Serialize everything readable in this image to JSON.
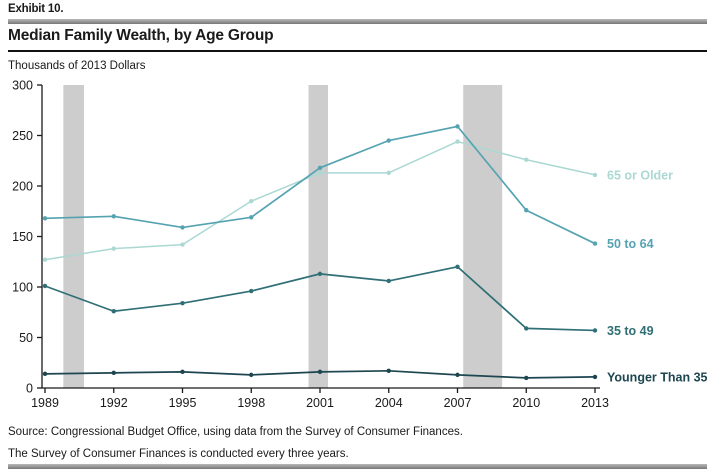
{
  "header": {
    "exhibit": "Exhibit 10.",
    "title": "Median Family Wealth, by Age Group",
    "units_label": "Thousands of 2013 Dollars"
  },
  "footer": {
    "source": "Source: Congressional Budget Office, using data from the Survey of Consumer Finances.",
    "note": "The Survey of Consumer Finances is conducted every three years."
  },
  "colors": {
    "recession_band": "#cdcdcd",
    "axis": "#1a1a1a",
    "tick_label": "#1a1a1a"
  },
  "chart_data": {
    "type": "line",
    "title": "Median Family Wealth, by Age Group",
    "ylabel": "Thousands of 2013 Dollars",
    "x": [
      1989,
      1992,
      1995,
      1998,
      2001,
      2004,
      2007,
      2010,
      2013
    ],
    "x_tick_labels": [
      "1989",
      "1992",
      "1995",
      "1998",
      "2001",
      "2004",
      "2007",
      "2010",
      "2013"
    ],
    "y_ticks": [
      0,
      50,
      100,
      150,
      200,
      250,
      300
    ],
    "ylim": [
      0,
      300
    ],
    "xlim": [
      1989,
      2013
    ],
    "grid": false,
    "legend_position": "end-of-line-labels",
    "shaded_bands": [
      {
        "from": 1989.8,
        "to": 1990.7
      },
      {
        "from": 2000.5,
        "to": 2001.35
      },
      {
        "from": 2007.25,
        "to": 2008.95
      }
    ],
    "series": [
      {
        "name": "65 or Older",
        "color": "#abd8d3",
        "values": [
          127,
          138,
          142,
          185,
          213,
          213,
          244,
          226,
          211
        ]
      },
      {
        "name": "50 to 64",
        "color": "#55a3b1",
        "values": [
          168,
          170,
          159,
          169,
          218,
          245,
          259,
          176,
          143
        ]
      },
      {
        "name": "35 to 49",
        "color": "#2f6f75",
        "values": [
          101,
          76,
          84,
          96,
          113,
          106,
          120,
          59,
          57
        ]
      },
      {
        "name": "Younger Than 35",
        "color": "#1d4651",
        "values": [
          14,
          15,
          16,
          13,
          16,
          17,
          13,
          10,
          11
        ]
      }
    ]
  }
}
